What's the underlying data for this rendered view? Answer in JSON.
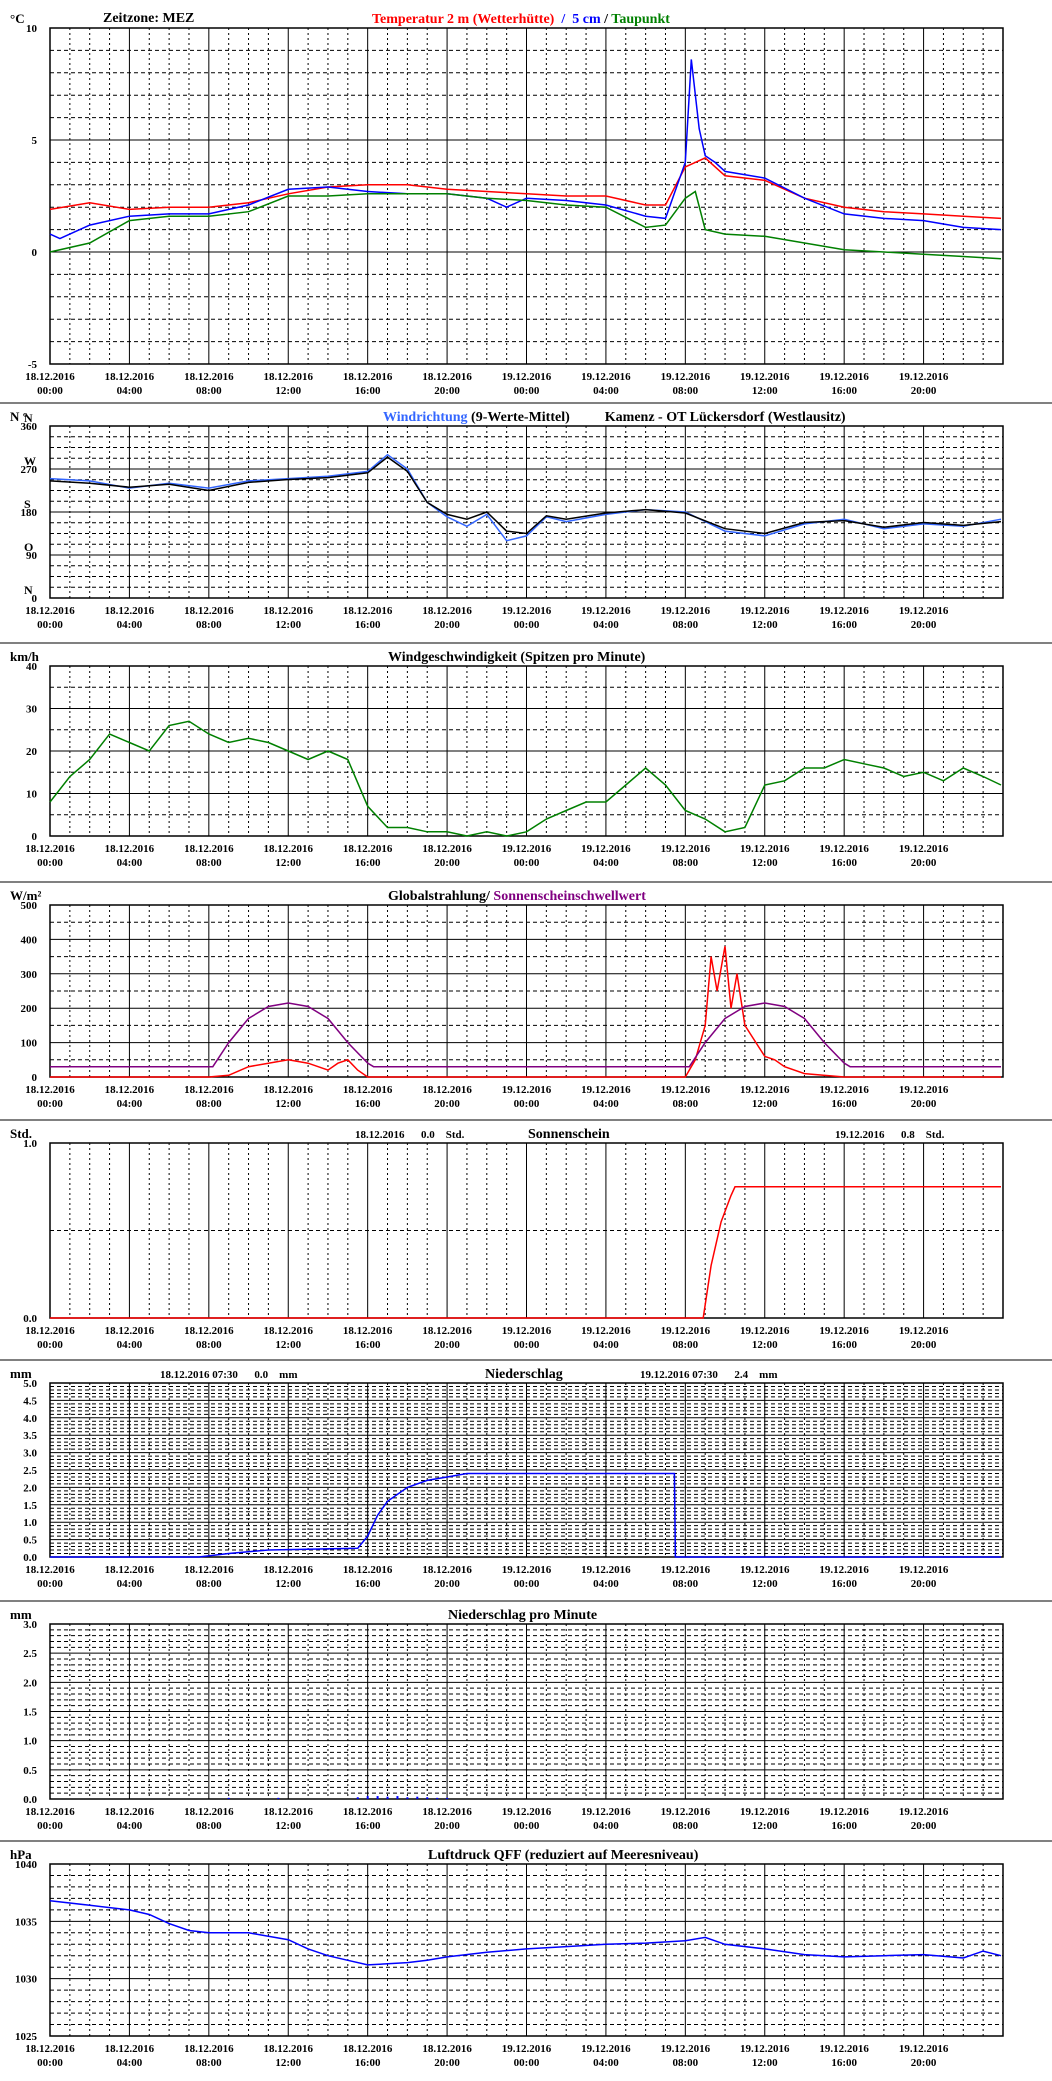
{
  "page": {
    "background": "#ffffff",
    "grid_color": "#000000"
  },
  "x_axis": {
    "ticks": [
      {
        "date": "18.12.2016",
        "time": "00:00"
      },
      {
        "date": "18.12.2016",
        "time": "04:00"
      },
      {
        "date": "18.12.2016",
        "time": "08:00"
      },
      {
        "date": "18.12.2016",
        "time": "12:00"
      },
      {
        "date": "18.12.2016",
        "time": "16:00"
      },
      {
        "date": "18.12.2016",
        "time": "20:00"
      },
      {
        "date": "19.12.2016",
        "time": "00:00"
      },
      {
        "date": "19.12.2016",
        "time": "04:00"
      },
      {
        "date": "19.12.2016",
        "time": "08:00"
      },
      {
        "date": "19.12.2016",
        "time": "12:00"
      },
      {
        "date": "19.12.2016",
        "time": "16:00"
      },
      {
        "date": "19.12.2016",
        "time": "20:00"
      }
    ],
    "range_hours": [
      0,
      48
    ]
  },
  "chart_data": [
    {
      "id": "temperature",
      "type": "line",
      "unit": "°C",
      "title_prefix": "Zeitzone: MEZ",
      "title_parts": [
        {
          "text": "Temperatur 2 m (Wetterhütte)",
          "color": "#ff0000"
        },
        {
          "text": "  /  ",
          "color": "#0000ff"
        },
        {
          "text": "5 cm",
          "color": "#0000ff"
        },
        {
          "text": " / ",
          "color": "#000000"
        },
        {
          "text": "Taupunkt",
          "color": "#008000"
        }
      ],
      "ylim": [
        -5,
        10
      ],
      "yticks": [
        -5,
        0,
        5,
        10
      ],
      "ytick_labels": [
        "-5",
        "0",
        "5",
        "10"
      ],
      "series": [
        {
          "name": "Temperatur 2 m (Wetterhütte)",
          "color": "#ff0000",
          "x": [
            0,
            2,
            4,
            6,
            8,
            10,
            12,
            14,
            16,
            18,
            20,
            22,
            24,
            26,
            28,
            30,
            31,
            32,
            33,
            34,
            36,
            38,
            40,
            42,
            44,
            46,
            47.9
          ],
          "y": [
            1.9,
            2.2,
            1.9,
            2.0,
            2.0,
            2.2,
            2.6,
            2.9,
            3.0,
            3.0,
            2.8,
            2.7,
            2.6,
            2.5,
            2.5,
            2.1,
            2.1,
            3.8,
            4.2,
            3.4,
            3.2,
            2.4,
            2.0,
            1.8,
            1.7,
            1.6,
            1.5
          ]
        },
        {
          "name": "5 cm",
          "color": "#0000ff",
          "x": [
            0,
            0.5,
            2,
            4,
            6,
            8,
            10,
            12,
            14,
            16,
            18,
            20,
            22,
            23,
            24,
            26,
            28,
            30,
            31,
            32,
            32.3,
            32.7,
            33,
            33.5,
            34,
            36,
            38,
            40,
            42,
            44,
            46,
            47.9
          ],
          "y": [
            0.8,
            0.6,
            1.2,
            1.6,
            1.7,
            1.7,
            2.1,
            2.8,
            2.9,
            2.7,
            2.6,
            2.6,
            2.4,
            2.0,
            2.4,
            2.3,
            2.1,
            1.6,
            1.5,
            4.0,
            8.6,
            5.5,
            4.3,
            4.0,
            3.6,
            3.3,
            2.4,
            1.7,
            1.5,
            1.4,
            1.1,
            1.0
          ]
        },
        {
          "name": "Taupunkt",
          "color": "#008000",
          "x": [
            0,
            2,
            4,
            6,
            8,
            10,
            12,
            14,
            16,
            18,
            20,
            22,
            24,
            26,
            28,
            30,
            31,
            32,
            32.5,
            33,
            34,
            36,
            38,
            40,
            42,
            44,
            46,
            47.9
          ],
          "y": [
            0.0,
            0.4,
            1.4,
            1.6,
            1.6,
            1.8,
            2.5,
            2.5,
            2.6,
            2.6,
            2.6,
            2.4,
            2.3,
            2.1,
            2.0,
            1.1,
            1.2,
            2.4,
            2.7,
            1.0,
            0.8,
            0.7,
            0.4,
            0.1,
            0.0,
            -0.1,
            -0.2,
            -0.3
          ]
        }
      ]
    },
    {
      "id": "wind_direction",
      "type": "line",
      "unit": "N °",
      "title_parts": [
        {
          "text": "Windrichtung",
          "color": "#3366ff"
        },
        {
          "text": " (9-Werte-Mittel)",
          "color": "#000000"
        },
        {
          "text": "          Kamenz - OT Lückersdorf (Westlausitz)",
          "color": "#000000"
        }
      ],
      "ylim": [
        0,
        360
      ],
      "yticks": [
        0,
        90,
        180,
        270,
        360
      ],
      "ytick_labels": [
        "0",
        "90",
        "180",
        "270",
        "360"
      ],
      "compass_labels": [
        {
          "label": "N",
          "value": 0
        },
        {
          "label": "O",
          "value": 90
        },
        {
          "label": "S",
          "value": 180
        },
        {
          "label": "W",
          "value": 270
        },
        {
          "label": "N",
          "value": 360
        }
      ],
      "series": [
        {
          "name": "Windrichtung",
          "color": "#3366ff",
          "x": [
            0,
            2,
            4,
            6,
            8,
            10,
            12,
            14,
            16,
            17,
            18,
            19,
            20,
            21,
            22,
            23,
            24,
            25,
            26,
            28,
            30,
            32,
            34,
            36,
            38,
            40,
            42,
            44,
            46,
            47.9
          ],
          "y": [
            250,
            245,
            230,
            240,
            230,
            245,
            250,
            255,
            265,
            300,
            270,
            200,
            170,
            150,
            175,
            120,
            130,
            170,
            160,
            175,
            185,
            180,
            140,
            130,
            155,
            165,
            145,
            155,
            150,
            165
          ]
        },
        {
          "name": "Mittel",
          "color": "#000000",
          "x": [
            0,
            2,
            4,
            6,
            8,
            10,
            12,
            14,
            16,
            17,
            18,
            19,
            20,
            21,
            22,
            23,
            24,
            25,
            26,
            28,
            30,
            32,
            34,
            36,
            38,
            40,
            42,
            44,
            46,
            47.9
          ],
          "y": [
            245,
            240,
            232,
            238,
            225,
            242,
            248,
            252,
            262,
            295,
            265,
            200,
            175,
            165,
            180,
            140,
            135,
            172,
            165,
            178,
            185,
            178,
            145,
            135,
            158,
            162,
            148,
            158,
            152,
            160
          ]
        }
      ]
    },
    {
      "id": "wind_speed",
      "type": "line",
      "unit": "km/h",
      "title_parts": [
        {
          "text": "Windgeschwindigkeit (Spitzen pro Minute)",
          "color": "#000000"
        }
      ],
      "ylim": [
        0,
        40
      ],
      "yticks": [
        0,
        10,
        20,
        30,
        40
      ],
      "ytick_labels": [
        "0",
        "10",
        "20",
        "30",
        "40"
      ],
      "series": [
        {
          "name": "Windgeschwindigkeit",
          "color": "#008000",
          "x": [
            0,
            1,
            2,
            3,
            4,
            5,
            6,
            7,
            8,
            9,
            10,
            11,
            12,
            13,
            14,
            15,
            16,
            17,
            18,
            19,
            20,
            21,
            22,
            23,
            24,
            25,
            26,
            27,
            28,
            29,
            30,
            31,
            32,
            33,
            34,
            35,
            36,
            37,
            38,
            39,
            40,
            41,
            42,
            43,
            44,
            45,
            46,
            47,
            47.9
          ],
          "y": [
            8,
            14,
            18,
            24,
            22,
            20,
            26,
            27,
            24,
            22,
            23,
            22,
            20,
            18,
            20,
            18,
            7,
            2,
            2,
            1,
            1,
            0,
            1,
            0,
            1,
            4,
            6,
            8,
            8,
            12,
            16,
            12,
            6,
            4,
            1,
            2,
            12,
            13,
            16,
            16,
            18,
            17,
            16,
            14,
            15,
            13,
            16,
            14,
            12
          ]
        }
      ]
    },
    {
      "id": "global_radiation",
      "type": "line",
      "unit": "W/m²",
      "title_parts": [
        {
          "text": "Globalstrahlung/ ",
          "color": "#000000"
        },
        {
          "text": "Sonnenscheinschwellwert",
          "color": "#800080"
        }
      ],
      "ylim": [
        0,
        500
      ],
      "yticks": [
        0,
        100,
        200,
        300,
        400,
        500
      ],
      "ytick_labels": [
        "0",
        "100",
        "200",
        "300",
        "400",
        "500"
      ],
      "series": [
        {
          "name": "Globalstrahlung",
          "color": "#ff0000",
          "x": [
            0,
            8,
            9,
            10,
            11,
            12,
            13,
            14,
            14.5,
            15,
            15.5,
            16,
            32,
            32.5,
            33,
            33.3,
            33.6,
            34,
            34.3,
            34.6,
            35,
            36,
            36.5,
            37,
            38,
            40,
            47.9
          ],
          "y": [
            0,
            0,
            5,
            30,
            40,
            50,
            40,
            20,
            40,
            50,
            20,
            0,
            0,
            50,
            150,
            350,
            250,
            380,
            200,
            300,
            150,
            60,
            50,
            30,
            10,
            0,
            0
          ]
        },
        {
          "name": "Sonnenscheinschwellwert",
          "color": "#800080",
          "x": [
            0,
            8.2,
            9,
            10,
            11,
            12,
            13,
            14,
            15,
            16,
            16.3,
            32.2,
            33,
            34,
            35,
            36,
            37,
            38,
            39,
            40,
            40.3,
            47.9
          ],
          "y": [
            30,
            30,
            100,
            170,
            205,
            215,
            205,
            170,
            100,
            40,
            30,
            30,
            100,
            170,
            205,
            215,
            205,
            170,
            100,
            40,
            30,
            30
          ]
        }
      ]
    },
    {
      "id": "sunshine",
      "type": "line",
      "unit": "Std.",
      "title_parts": [
        {
          "text": "Sonnenschein",
          "color": "#000000"
        }
      ],
      "annotations": [
        {
          "date": "18.12.2016",
          "value": "0.0",
          "unit": "Std."
        },
        {
          "date": "19.12.2016",
          "value": "0.8",
          "unit": "Std."
        }
      ],
      "ylim": [
        0,
        1
      ],
      "yticks": [
        0,
        1
      ],
      "ytick_labels": [
        "0.0",
        "1.0"
      ],
      "series": [
        {
          "name": "Sonnenschein",
          "color": "#ff0000",
          "x": [
            0,
            32.9,
            33.3,
            33.8,
            34.3,
            34.5,
            47.9
          ],
          "y": [
            0,
            0,
            0.3,
            0.55,
            0.7,
            0.75,
            0.75
          ]
        }
      ]
    },
    {
      "id": "precipitation",
      "type": "line",
      "unit": "mm",
      "title_parts": [
        {
          "text": "Niederschlag",
          "color": "#000000"
        }
      ],
      "annotations": [
        {
          "date": "18.12.2016 07:30",
          "value": "0.0",
          "unit": "mm"
        },
        {
          "date": "19.12.2016 07:30",
          "value": "2.4",
          "unit": "mm"
        }
      ],
      "ylim": [
        0,
        5
      ],
      "yticks": [
        0,
        0.5,
        1,
        1.5,
        2,
        2.5,
        3,
        3.5,
        4,
        4.5,
        5
      ],
      "ytick_labels": [
        "0.0",
        "0.5",
        "1.0",
        "1.5",
        "2.0",
        "2.5",
        "3.0",
        "3.5",
        "4.0",
        "4.5",
        "5.0"
      ],
      "series": [
        {
          "name": "Niederschlag",
          "color": "#0000ff",
          "x": [
            0,
            7.5,
            9,
            11,
            15.5,
            16,
            16.5,
            17,
            18,
            19,
            20,
            21,
            22,
            23,
            31.45,
            31.5,
            47.9
          ],
          "y": [
            0,
            0,
            0.1,
            0.2,
            0.25,
            0.6,
            1.2,
            1.6,
            2.0,
            2.2,
            2.3,
            2.4,
            2.4,
            2.4,
            2.4,
            0,
            0
          ]
        }
      ]
    },
    {
      "id": "precipitation_per_minute",
      "type": "bar",
      "unit": "mm",
      "title_parts": [
        {
          "text": "Niederschlag pro Minute",
          "color": "#000000"
        }
      ],
      "ylim": [
        0,
        3
      ],
      "yticks": [
        0,
        0.5,
        1,
        1.5,
        2,
        2.5,
        3
      ],
      "ytick_labels": [
        "0.0",
        "0.5",
        "1.0",
        "1.5",
        "2.0",
        "2.5",
        "3.0"
      ],
      "series": [
        {
          "name": "Niederschlag pro Minute",
          "color": "#0000ff",
          "x": [
            9,
            11.5,
            15.5,
            16,
            16.5,
            17,
            17.5,
            18,
            18.5,
            19,
            19.5,
            20
          ],
          "y": [
            0.02,
            0.02,
            0.03,
            0.05,
            0.05,
            0.04,
            0.05,
            0.03,
            0.04,
            0.03,
            0.02,
            0.02
          ]
        }
      ]
    },
    {
      "id": "pressure",
      "type": "line",
      "unit": "hPa",
      "title_parts": [
        {
          "text": "Luftdruck QFF (reduziert auf Meeresniveau)",
          "color": "#000000"
        }
      ],
      "ylim": [
        1025,
        1040
      ],
      "yticks": [
        1025,
        1030,
        1035,
        1040
      ],
      "ytick_labels": [
        "1025",
        "1030",
        "1035",
        "1040"
      ],
      "series": [
        {
          "name": "Luftdruck QFF",
          "color": "#0000ff",
          "x": [
            0,
            2,
            4,
            5,
            6,
            7,
            8,
            10,
            12,
            13,
            14,
            15,
            16,
            18,
            19,
            20,
            22,
            24,
            26,
            28,
            30,
            32,
            33,
            34,
            36,
            38,
            40,
            42,
            44,
            46,
            47,
            47.9
          ],
          "y": [
            1036.8,
            1036.4,
            1036.0,
            1035.6,
            1034.8,
            1034.2,
            1034.0,
            1034.0,
            1033.4,
            1032.6,
            1032.0,
            1031.6,
            1031.2,
            1031.4,
            1031.6,
            1031.9,
            1032.3,
            1032.6,
            1032.8,
            1033.0,
            1033.1,
            1033.3,
            1033.6,
            1033.0,
            1032.6,
            1032.1,
            1031.9,
            1032.0,
            1032.1,
            1031.8,
            1032.4,
            1032.0
          ]
        }
      ]
    }
  ]
}
